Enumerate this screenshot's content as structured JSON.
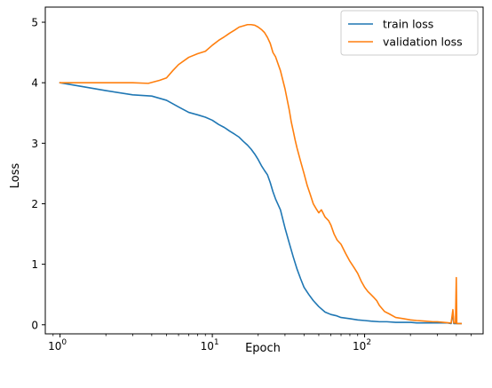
{
  "chart_data": {
    "type": "line",
    "title": "",
    "xlabel": "Epoch",
    "ylabel": "Loss",
    "xscale": "log",
    "xlim": [
      0.8,
      600
    ],
    "ylim": [
      -0.15,
      5.25
    ],
    "grid": false,
    "legend_position": "top-right",
    "x_ticks": [
      {
        "value": 1,
        "base": "10",
        "exp": "0"
      },
      {
        "value": 10,
        "base": "10",
        "exp": "1"
      },
      {
        "value": 100,
        "base": "10",
        "exp": "2"
      }
    ],
    "y_ticks": [
      {
        "value": 0,
        "label": "0"
      },
      {
        "value": 1,
        "label": "1"
      },
      {
        "value": 2,
        "label": "2"
      },
      {
        "value": 3,
        "label": "3"
      },
      {
        "value": 4,
        "label": "4"
      },
      {
        "value": 5,
        "label": "5"
      }
    ],
    "series": [
      {
        "name": "train loss",
        "color": "#1f77b4",
        "points": [
          [
            1,
            4.0
          ],
          [
            2,
            3.87
          ],
          [
            3,
            3.8
          ],
          [
            4,
            3.78
          ],
          [
            5,
            3.71
          ],
          [
            6,
            3.6
          ],
          [
            7,
            3.51
          ],
          [
            8,
            3.47
          ],
          [
            9,
            3.43
          ],
          [
            10,
            3.38
          ],
          [
            11,
            3.31
          ],
          [
            12,
            3.26
          ],
          [
            13,
            3.2
          ],
          [
            14,
            3.15
          ],
          [
            15,
            3.1
          ],
          [
            16,
            3.03
          ],
          [
            17,
            2.97
          ],
          [
            18,
            2.9
          ],
          [
            19,
            2.82
          ],
          [
            20,
            2.73
          ],
          [
            21,
            2.63
          ],
          [
            22,
            2.55
          ],
          [
            23,
            2.48
          ],
          [
            24,
            2.35
          ],
          [
            25,
            2.2
          ],
          [
            26,
            2.08
          ],
          [
            28,
            1.9
          ],
          [
            30,
            1.6
          ],
          [
            32,
            1.35
          ],
          [
            34,
            1.12
          ],
          [
            36,
            0.92
          ],
          [
            38,
            0.76
          ],
          [
            40,
            0.62
          ],
          [
            43,
            0.5
          ],
          [
            46,
            0.4
          ],
          [
            50,
            0.3
          ],
          [
            55,
            0.21
          ],
          [
            60,
            0.17
          ],
          [
            65,
            0.15
          ],
          [
            70,
            0.12
          ],
          [
            80,
            0.1
          ],
          [
            90,
            0.08
          ],
          [
            100,
            0.07
          ],
          [
            110,
            0.06
          ],
          [
            125,
            0.05
          ],
          [
            140,
            0.05
          ],
          [
            160,
            0.04
          ],
          [
            180,
            0.04
          ],
          [
            200,
            0.04
          ],
          [
            220,
            0.03
          ],
          [
            250,
            0.03
          ],
          [
            280,
            0.03
          ],
          [
            310,
            0.03
          ],
          [
            350,
            0.03
          ],
          [
            370,
            0.02
          ],
          [
            380,
            0.2
          ],
          [
            385,
            0.02
          ],
          [
            400,
            0.02
          ],
          [
            430,
            0.02
          ]
        ]
      },
      {
        "name": "validation loss",
        "color": "#ff7f0e",
        "points": [
          [
            1,
            4.0
          ],
          [
            2,
            4.0
          ],
          [
            3,
            4.0
          ],
          [
            3.8,
            3.99
          ],
          [
            4.5,
            4.04
          ],
          [
            5,
            4.08
          ],
          [
            5.5,
            4.2
          ],
          [
            6,
            4.3
          ],
          [
            7,
            4.42
          ],
          [
            8,
            4.48
          ],
          [
            9,
            4.52
          ],
          [
            10,
            4.62
          ],
          [
            11,
            4.7
          ],
          [
            12,
            4.76
          ],
          [
            13,
            4.82
          ],
          [
            14,
            4.87
          ],
          [
            15,
            4.92
          ],
          [
            16,
            4.94
          ],
          [
            17,
            4.96
          ],
          [
            18,
            4.96
          ],
          [
            19,
            4.95
          ],
          [
            20,
            4.92
          ],
          [
            21,
            4.88
          ],
          [
            22,
            4.83
          ],
          [
            23,
            4.75
          ],
          [
            24,
            4.65
          ],
          [
            25,
            4.5
          ],
          [
            26,
            4.43
          ],
          [
            28,
            4.2
          ],
          [
            30,
            3.9
          ],
          [
            32,
            3.55
          ],
          [
            33,
            3.35
          ],
          [
            34,
            3.2
          ],
          [
            35,
            3.05
          ],
          [
            36,
            2.92
          ],
          [
            38,
            2.7
          ],
          [
            40,
            2.5
          ],
          [
            42,
            2.3
          ],
          [
            44,
            2.15
          ],
          [
            46,
            2.0
          ],
          [
            48,
            1.92
          ],
          [
            50,
            1.85
          ],
          [
            52,
            1.9
          ],
          [
            55,
            1.78
          ],
          [
            58,
            1.72
          ],
          [
            60,
            1.65
          ],
          [
            63,
            1.5
          ],
          [
            66,
            1.4
          ],
          [
            70,
            1.33
          ],
          [
            75,
            1.18
          ],
          [
            80,
            1.05
          ],
          [
            85,
            0.95
          ],
          [
            90,
            0.85
          ],
          [
            95,
            0.72
          ],
          [
            100,
            0.62
          ],
          [
            105,
            0.55
          ],
          [
            110,
            0.5
          ],
          [
            115,
            0.45
          ],
          [
            120,
            0.4
          ],
          [
            125,
            0.32
          ],
          [
            135,
            0.22
          ],
          [
            145,
            0.18
          ],
          [
            160,
            0.12
          ],
          [
            180,
            0.1
          ],
          [
            200,
            0.08
          ],
          [
            220,
            0.07
          ],
          [
            250,
            0.06
          ],
          [
            280,
            0.05
          ],
          [
            300,
            0.05
          ],
          [
            330,
            0.04
          ],
          [
            360,
            0.03
          ],
          [
            370,
            0.03
          ],
          [
            380,
            0.25
          ],
          [
            385,
            0.03
          ],
          [
            395,
            0.03
          ],
          [
            400,
            0.78
          ],
          [
            403,
            0.02
          ],
          [
            430,
            0.02
          ]
        ]
      }
    ]
  }
}
